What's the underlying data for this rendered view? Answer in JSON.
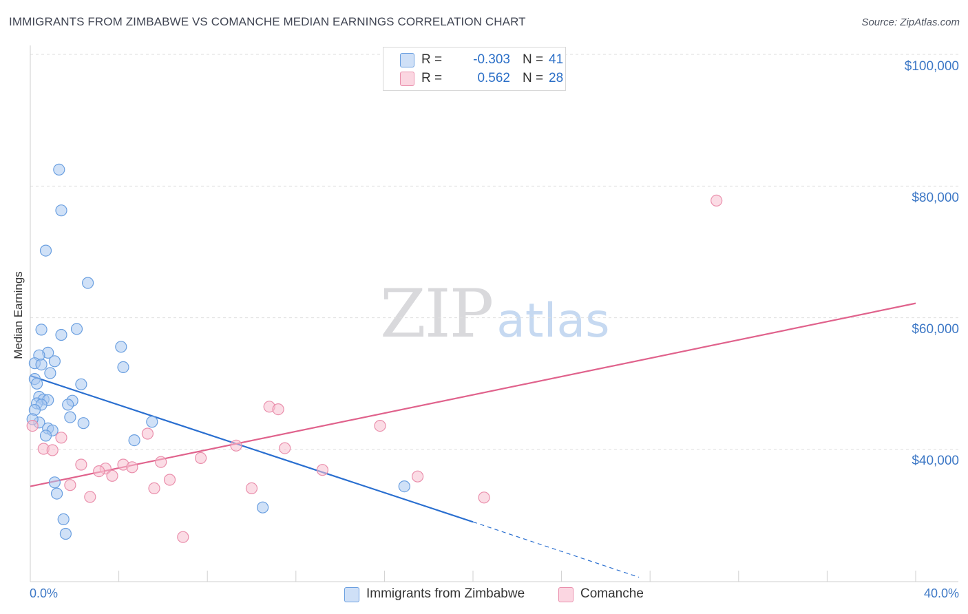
{
  "header": {
    "title": "IMMIGRANTS FROM ZIMBABWE VS COMANCHE MEDIAN EARNINGS CORRELATION CHART",
    "source": "Source: ZipAtlas.com"
  },
  "watermark": {
    "zip": "ZIP",
    "atlas": "atlas"
  },
  "legend": {
    "rows": [
      {
        "r_label": "R =",
        "r_value": "-0.303",
        "n_label": "N =",
        "n_value": "41",
        "color": "#a9c8f0",
        "stroke": "#6a9fe0"
      },
      {
        "r_label": "R =",
        "r_value": "0.562",
        "n_label": "N =",
        "n_value": "28",
        "color": "#f7bfd0",
        "stroke": "#ea8fac"
      }
    ]
  },
  "bottom_legend": [
    {
      "label": "Immigrants from Zimbabwe",
      "color": "#a9c8f0",
      "stroke": "#6a9fe0"
    },
    {
      "label": "Comanche",
      "color": "#f7bfd0",
      "stroke": "#ea8fac"
    }
  ],
  "axes": {
    "x_min_label": "0.0%",
    "x_max_label": "40.0%",
    "y_label": "Median Earnings",
    "y_ticks": [
      "$100,000",
      "$80,000",
      "$60,000",
      "$40,000"
    ]
  },
  "chart_data": {
    "type": "scatter",
    "title": "IMMIGRANTS FROM ZIMBABWE VS COMANCHE MEDIAN EARNINGS CORRELATION CHART",
    "xlabel": "",
    "ylabel": "Median Earnings",
    "xlim": [
      0,
      40
    ],
    "ylim": [
      20000,
      102000
    ],
    "y_ticks": [
      40000,
      60000,
      80000,
      100000
    ],
    "series": [
      {
        "name": "Immigrants from Zimbabwe",
        "color": "#a9c8f0",
        "stroke": "#6a9fe0",
        "line_color": "#2a6fd0",
        "trend": {
          "x0": 0,
          "y0": 51200,
          "x1": 20,
          "y1": 29000,
          "dash_to_x": 27.5,
          "dash_to_y": 20600
        },
        "points": [
          [
            1.3,
            82500
          ],
          [
            1.4,
            76300
          ],
          [
            0.7,
            70200
          ],
          [
            2.6,
            65300
          ],
          [
            0.5,
            58200
          ],
          [
            1.4,
            57400
          ],
          [
            2.1,
            58300
          ],
          [
            4.1,
            55600
          ],
          [
            0.8,
            54700
          ],
          [
            0.4,
            54300
          ],
          [
            1.1,
            53400
          ],
          [
            0.2,
            53100
          ],
          [
            0.5,
            52900
          ],
          [
            4.2,
            52500
          ],
          [
            0.9,
            51600
          ],
          [
            0.2,
            50700
          ],
          [
            0.3,
            50000
          ],
          [
            2.3,
            49900
          ],
          [
            0.4,
            48000
          ],
          [
            0.6,
            47600
          ],
          [
            0.8,
            47500
          ],
          [
            1.9,
            47400
          ],
          [
            0.3,
            47000
          ],
          [
            0.5,
            46800
          ],
          [
            1.7,
            46800
          ],
          [
            0.2,
            46000
          ],
          [
            1.8,
            44900
          ],
          [
            0.4,
            44100
          ],
          [
            2.4,
            44000
          ],
          [
            5.5,
            44200
          ],
          [
            0.8,
            43200
          ],
          [
            1.0,
            42900
          ],
          [
            0.7,
            42100
          ],
          [
            4.7,
            41400
          ],
          [
            1.1,
            35000
          ],
          [
            1.2,
            33300
          ],
          [
            1.5,
            29400
          ],
          [
            1.6,
            27200
          ],
          [
            10.5,
            31200
          ],
          [
            16.9,
            34400
          ],
          [
            0.1,
            44600
          ]
        ]
      },
      {
        "name": "Comanche",
        "color": "#f7bfd0",
        "stroke": "#ea8fac",
        "line_color": "#e0628c",
        "trend": {
          "x0": 0,
          "y0": 34400,
          "x1": 40,
          "y1": 62200
        },
        "points": [
          [
            0.1,
            43600
          ],
          [
            31.0,
            77800
          ],
          [
            10.8,
            46500
          ],
          [
            11.2,
            46100
          ],
          [
            15.8,
            43600
          ],
          [
            5.3,
            42400
          ],
          [
            1.4,
            41800
          ],
          [
            9.3,
            40600
          ],
          [
            11.5,
            40200
          ],
          [
            0.6,
            40100
          ],
          [
            1.0,
            39900
          ],
          [
            7.7,
            38700
          ],
          [
            5.9,
            38100
          ],
          [
            2.3,
            37700
          ],
          [
            4.2,
            37700
          ],
          [
            3.4,
            37100
          ],
          [
            4.6,
            37300
          ],
          [
            3.1,
            36700
          ],
          [
            13.2,
            36900
          ],
          [
            3.7,
            36000
          ],
          [
            17.5,
            35900
          ],
          [
            6.3,
            35400
          ],
          [
            1.8,
            34600
          ],
          [
            5.6,
            34100
          ],
          [
            10.0,
            34100
          ],
          [
            2.7,
            32800
          ],
          [
            20.5,
            32700
          ],
          [
            6.9,
            26700
          ]
        ]
      }
    ]
  }
}
